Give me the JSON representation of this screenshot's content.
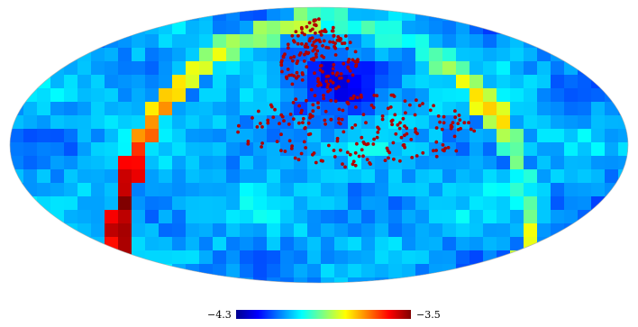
{
  "map": {
    "projection": "mollweide",
    "scheme": "jet"
  },
  "colorbar": {
    "min_label": "−4.3",
    "max_label": "−3.5",
    "colors": [
      "#00008f",
      "#0000ff",
      "#0080ff",
      "#00ffff",
      "#80ff80",
      "#ffff00",
      "#ff8000",
      "#ff0000",
      "#800000"
    ]
  },
  "points": {
    "color": "#b00000",
    "cluster_a": {
      "lon_deg": 0,
      "lat_deg": 52,
      "lon_spread_deg": 30,
      "lat_spread_deg": 24,
      "count": 160
    },
    "cluster_b": {
      "lon_deg": 22,
      "lat_deg": 8,
      "lon_spread_deg": 70,
      "lat_spread_deg": 20,
      "count": 210
    }
  }
}
